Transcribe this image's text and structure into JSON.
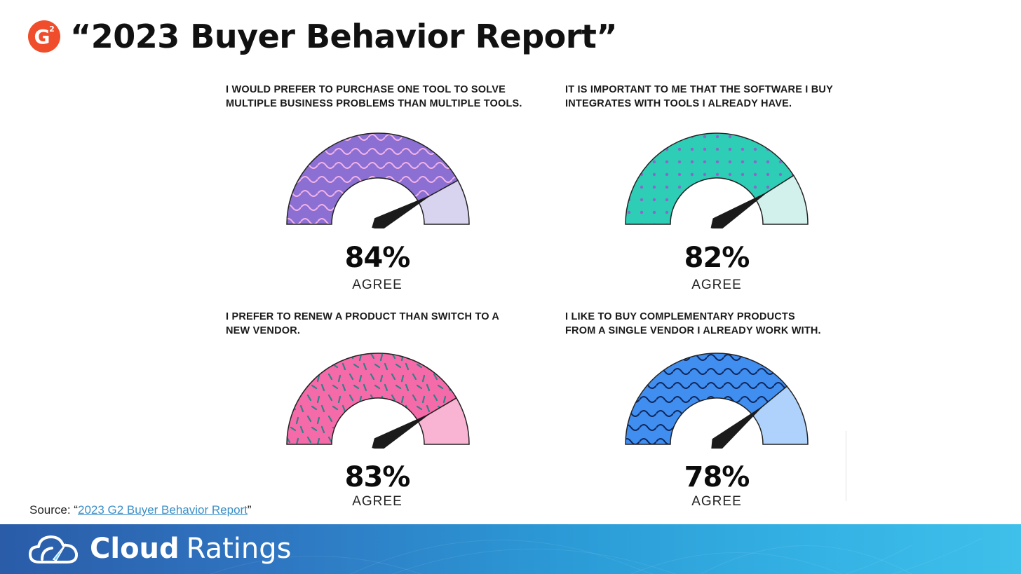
{
  "header": {
    "title": "“2023 Buyer Behavior Report”",
    "logo": {
      "icon": "g2-logo-icon",
      "text": "G",
      "sup": "2",
      "color": "#ef4d2b"
    }
  },
  "chart_data": [
    {
      "type": "gauge",
      "question": "I WOULD PREFER TO PURCHASE ONE TOOL TO SOLVE\nMULTIPLE BUSINESS PROBLEMS THAN MULTIPLE TOOLS.",
      "value": 84,
      "value_label": "84%",
      "label": "AGREE",
      "color": "#8b6fd3",
      "light_color": "#d8d3ee",
      "pattern": "waves",
      "pattern_color": "#f3b3e6"
    },
    {
      "type": "gauge",
      "question": "IT IS IMPORTANT TO ME THAT THE SOFTWARE I BUY\nINTEGRATES WITH TOOLS I ALREADY HAVE.",
      "value": 82,
      "value_label": "82%",
      "label": "AGREE",
      "color": "#2ecdb6",
      "light_color": "#d3f1ec",
      "pattern": "dots",
      "pattern_color": "#8a67c9"
    },
    {
      "type": "gauge",
      "question": "I PREFER TO RENEW A PRODUCT THAN SWITCH TO A\nNEW VENDOR.",
      "value": 83,
      "value_label": "83%",
      "label": "AGREE",
      "color": "#f56aa8",
      "light_color": "#f9b3d3",
      "pattern": "sprinkles",
      "pattern_color": "#2f8088"
    },
    {
      "type": "gauge",
      "question": "I LIKE TO BUY COMPLEMENTARY PRODUCTS\nFROM A SINGLE VENDOR I ALREADY WORK WITH.",
      "value": 78,
      "value_label": "78%",
      "label": "AGREE",
      "color": "#3f8ef0",
      "light_color": "#aed2fb",
      "pattern": "waves",
      "pattern_color": "#10265a"
    }
  ],
  "source": {
    "prefix": "Source: “",
    "link_text": "2023 G2 Buyer Behavior Report",
    "suffix": "”"
  },
  "footer": {
    "logo_icon": "cloud-gauge-icon",
    "brand_bold": "Cloud",
    "brand_light": "Ratings"
  }
}
